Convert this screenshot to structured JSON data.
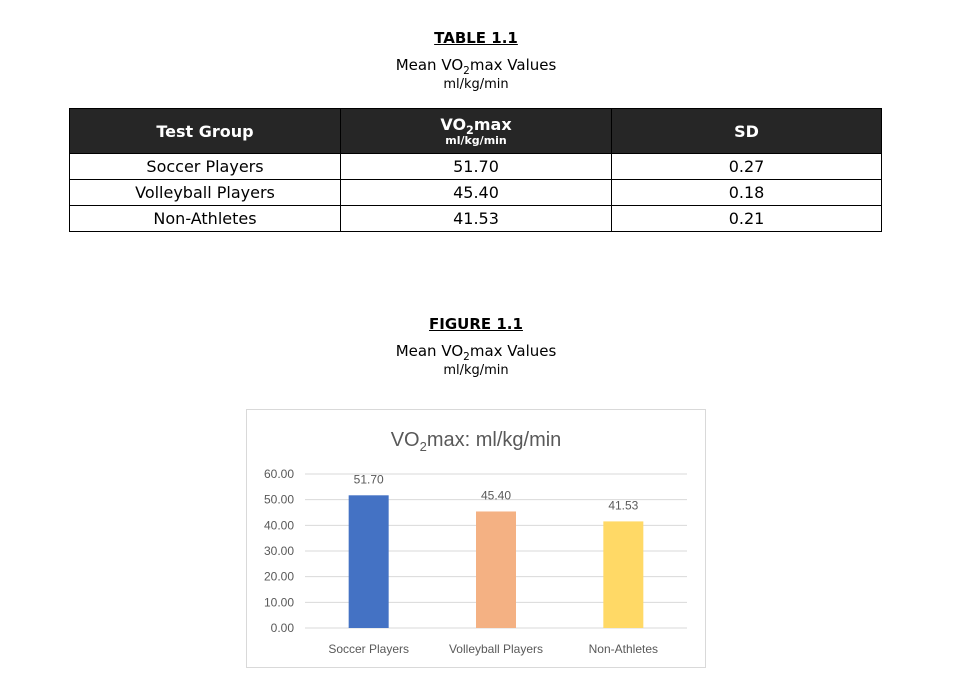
{
  "table_section": {
    "heading": "TABLE 1.1",
    "title_prefix": "Mean VO",
    "title_sub": "2",
    "title_suffix": "max Values",
    "units": "ml/kg/min",
    "columns": {
      "group": "Test Group",
      "vo2_prefix": "VO",
      "vo2_sub": "2",
      "vo2_suffix": "max",
      "vo2_units": "ml/kg/min",
      "sd": "SD"
    },
    "rows": [
      {
        "group": "Soccer Players",
        "vo2max": "51.70",
        "sd": "0.27"
      },
      {
        "group": "Volleyball Players",
        "vo2max": "45.40",
        "sd": "0.18"
      },
      {
        "group": "Non-Athletes",
        "vo2max": "41.53",
        "sd": "0.21"
      }
    ]
  },
  "figure_section": {
    "heading": "FIGURE 1.1",
    "title_prefix": "Mean VO",
    "title_sub": "2",
    "title_suffix": "max Values",
    "units": "ml/kg/min"
  },
  "chart_data": {
    "type": "bar",
    "title_prefix": "VO",
    "title_sub": "2",
    "title_suffix": "max: ml/kg/min",
    "categories": [
      "Soccer Players",
      "Volleyball Players",
      "Non-Athletes"
    ],
    "values": [
      51.7,
      45.4,
      41.53
    ],
    "value_labels": [
      "51.70",
      "45.40",
      "41.53"
    ],
    "colors": [
      "#4472c4",
      "#f4b183",
      "#ffd966"
    ],
    "ylim": [
      0,
      60
    ],
    "yticks": [
      "0.00",
      "10.00",
      "20.00",
      "30.00",
      "40.00",
      "50.00",
      "60.00"
    ],
    "grid": true,
    "gridline_color": "#d9d9d9",
    "text_color": "#595959",
    "xlabel": "",
    "ylabel": ""
  }
}
